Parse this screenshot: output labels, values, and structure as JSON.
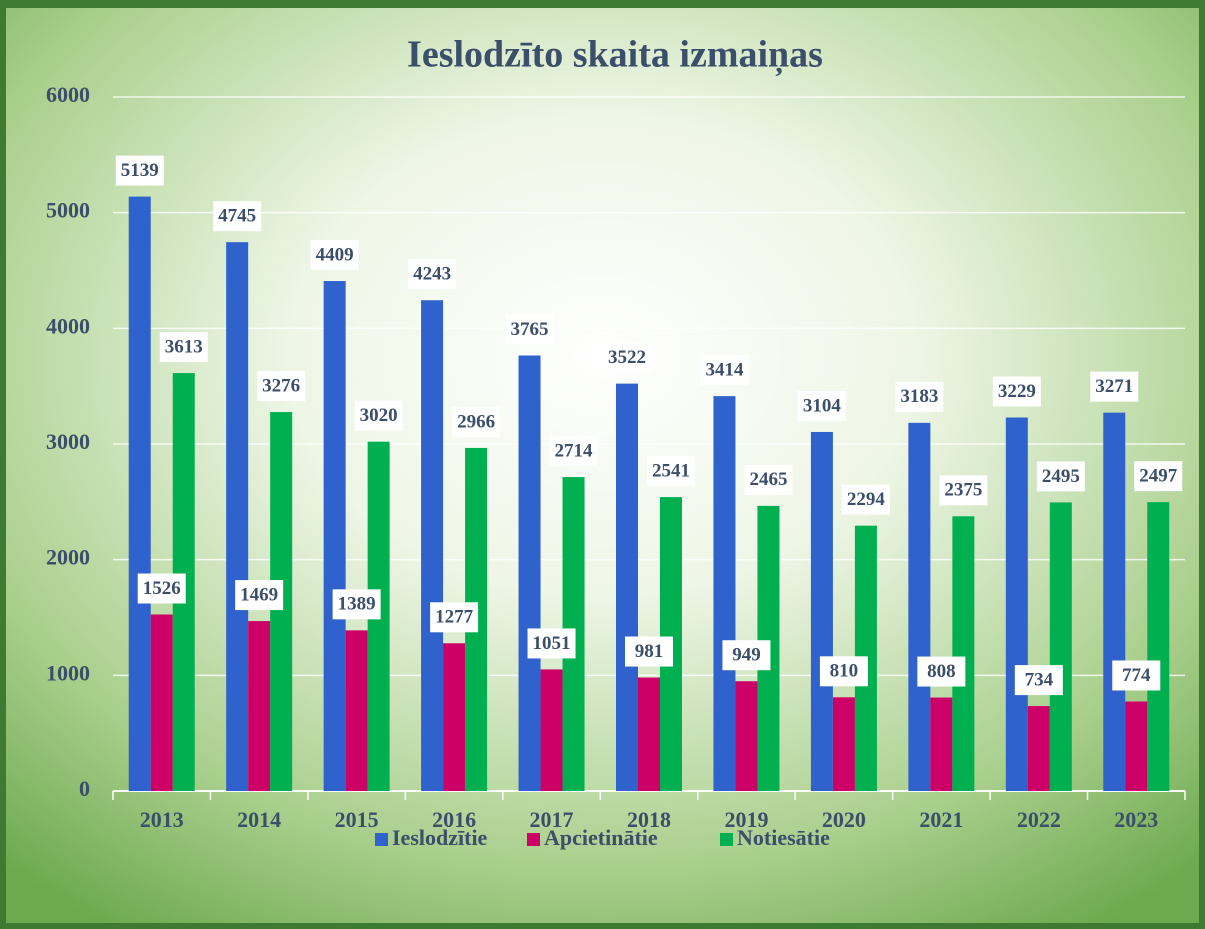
{
  "chart_data": {
    "type": "bar",
    "title": "Ieslodzīto skaita izmaiņas",
    "categories": [
      "2013",
      "2014",
      "2015",
      "2016",
      "2017",
      "2018",
      "2019",
      "2020",
      "2021",
      "2022",
      "2023"
    ],
    "series": [
      {
        "name": "Ieslodzītie",
        "color": "#2f62cc",
        "values": [
          5139,
          4745,
          4409,
          4243,
          3765,
          3522,
          3414,
          3104,
          3183,
          3229,
          3271
        ]
      },
      {
        "name": "Apcietinātie",
        "color": "#cc0066",
        "values": [
          1526,
          1469,
          1389,
          1277,
          1051,
          981,
          949,
          810,
          808,
          734,
          774
        ]
      },
      {
        "name": "Notiesātie",
        "color": "#00b050",
        "values": [
          3613,
          3276,
          3020,
          2966,
          2714,
          2541,
          2465,
          2294,
          2375,
          2495,
          2497
        ]
      }
    ],
    "ylim": [
      0,
      6000
    ],
    "yticks": [
      0,
      1000,
      2000,
      3000,
      4000,
      5000,
      6000
    ],
    "grid": true,
    "legend": "bottom"
  }
}
